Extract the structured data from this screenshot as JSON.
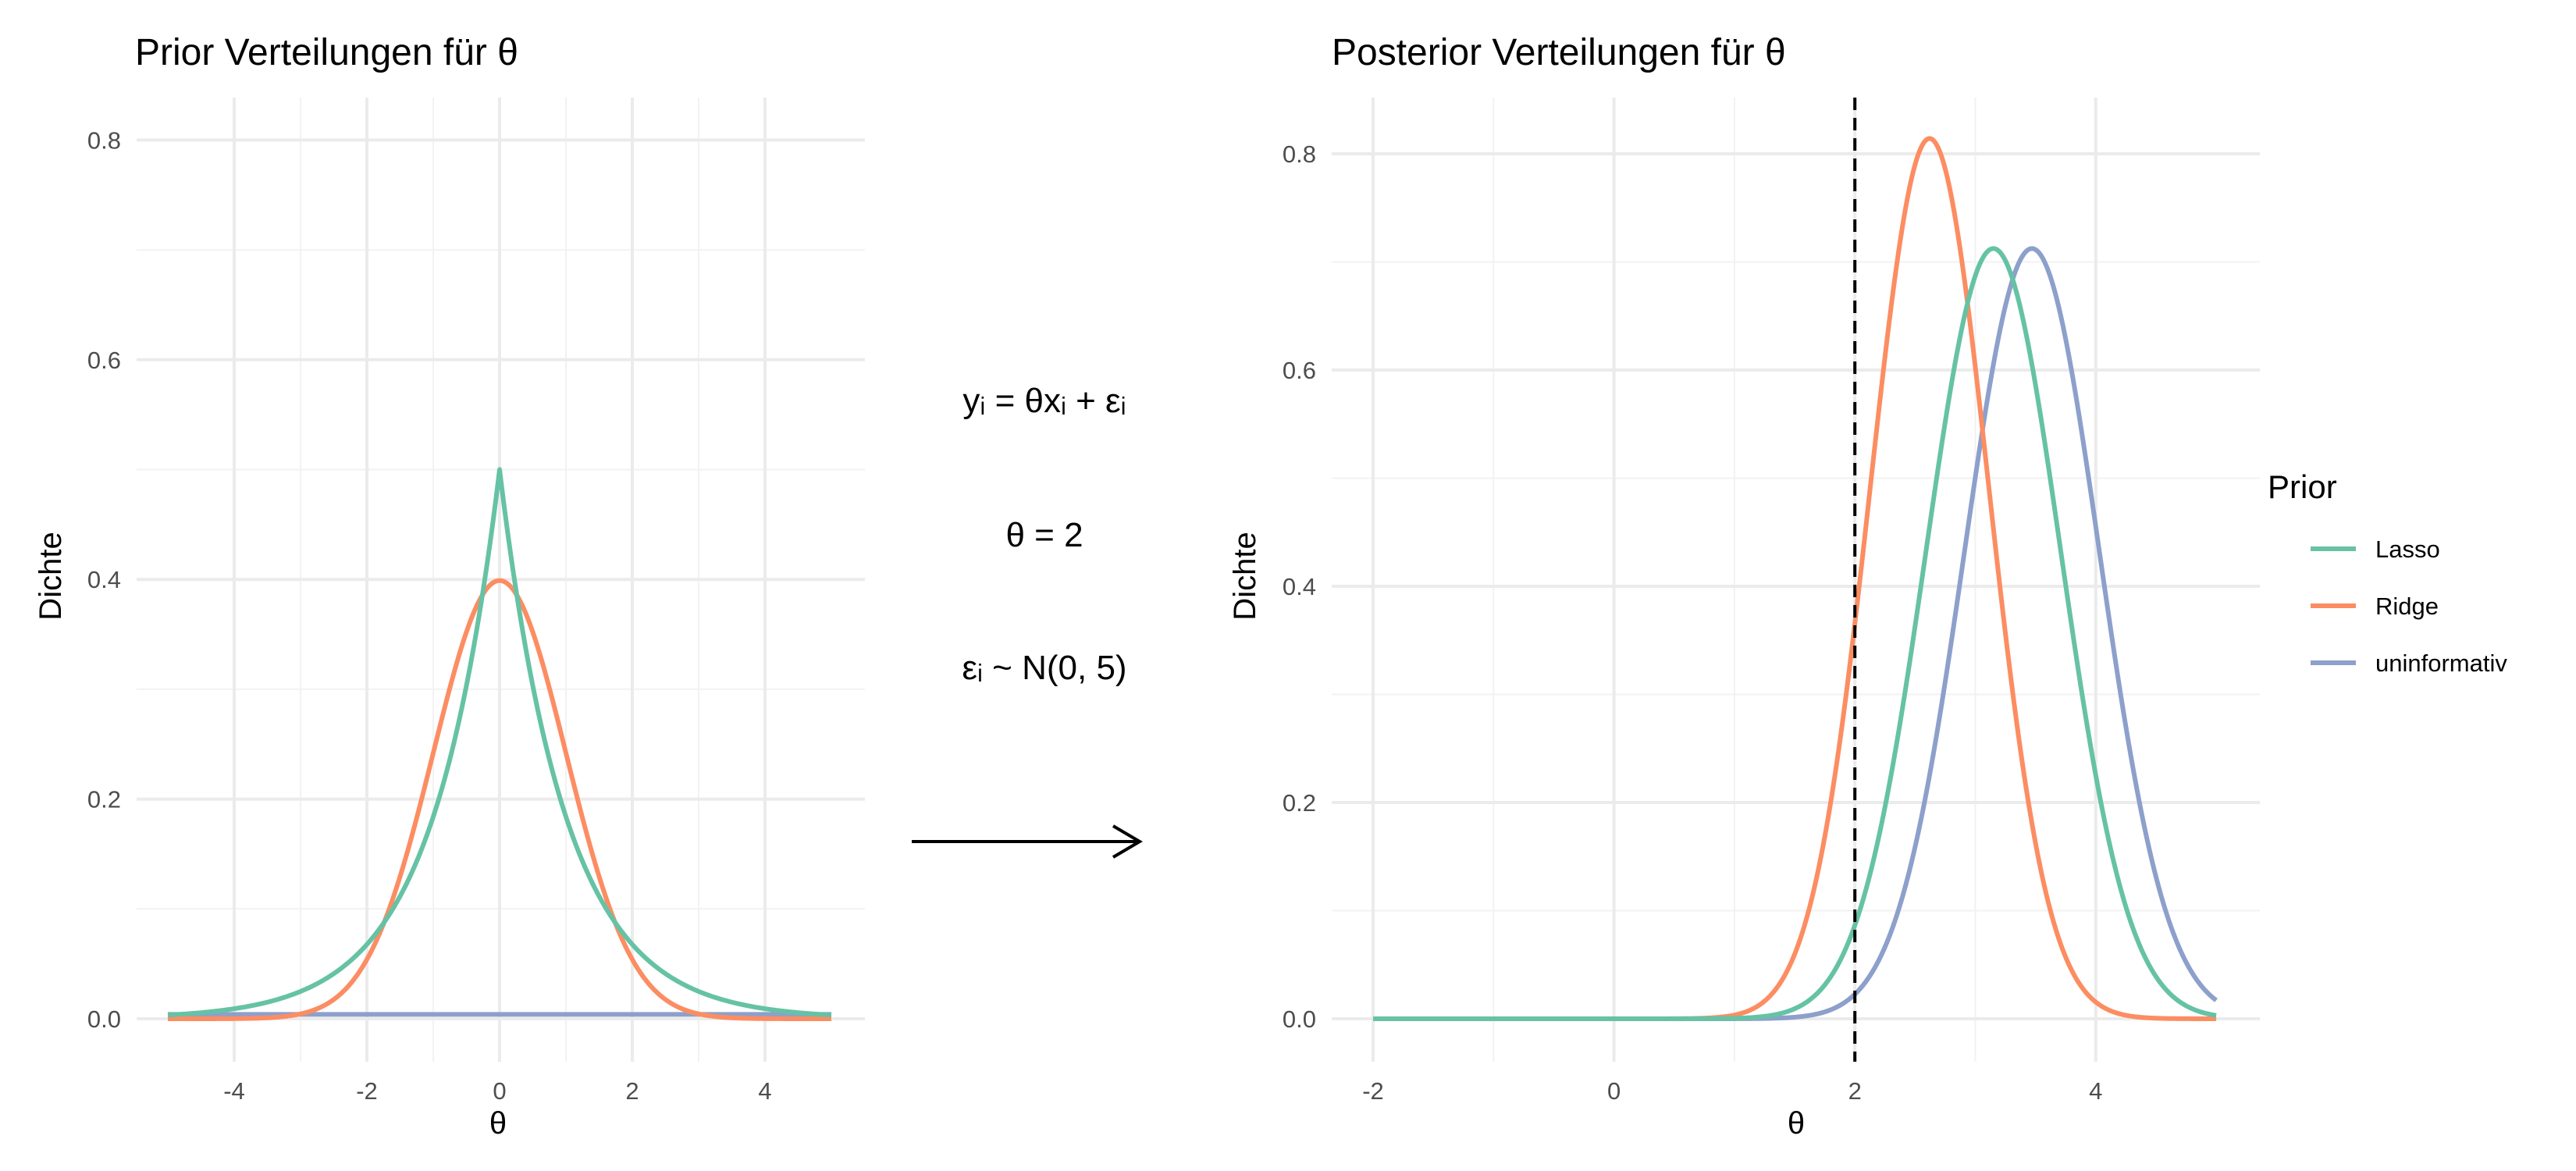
{
  "chart_data": [
    {
      "id": "prior",
      "type": "line",
      "title": "Prior Verteilungen für θ",
      "xlabel": "θ",
      "ylabel": "Dichte",
      "xlim": [
        -5,
        5
      ],
      "ylim": [
        0,
        0.8
      ],
      "x_ticks": [
        -4,
        -2,
        0,
        2,
        4
      ],
      "x_tick_labels": [
        "-4",
        "-2",
        "0",
        "2",
        "4"
      ],
      "y_ticks": [
        0,
        0.2,
        0.4,
        0.6,
        0.8
      ],
      "y_tick_labels": [
        "0.0",
        "0.2",
        "0.4",
        "0.6",
        "0.8"
      ],
      "grid": true,
      "series": [
        {
          "name": "Lasso",
          "distribution": "laplace",
          "location": 0,
          "scale": 1,
          "peak": 0.5
        },
        {
          "name": "Ridge",
          "distribution": "normal",
          "mean": 0,
          "sd": 1,
          "peak": 0.399
        },
        {
          "name": "uninformativ",
          "distribution": "uniform",
          "value": 0.004
        }
      ]
    },
    {
      "id": "posterior",
      "type": "line",
      "title": "Posterior Verteilungen für θ",
      "xlabel": "θ",
      "ylabel": "Dichte",
      "xlim": [
        -2,
        5
      ],
      "ylim": [
        0,
        0.85
      ],
      "x_ticks": [
        -2,
        0,
        2,
        4
      ],
      "x_tick_labels": [
        "-2",
        "0",
        "2",
        "4"
      ],
      "y_ticks": [
        0,
        0.2,
        0.4,
        0.6,
        0.8
      ],
      "y_tick_labels": [
        "0.0",
        "0.2",
        "0.4",
        "0.6",
        "0.8"
      ],
      "grid": true,
      "reference_line": {
        "x": 2,
        "style": "dashed"
      },
      "series": [
        {
          "name": "Lasso",
          "distribution": "normal",
          "mean": 3.15,
          "sd": 0.56,
          "peak": 0.712
        },
        {
          "name": "Ridge",
          "distribution": "normal",
          "mean": 2.62,
          "sd": 0.49,
          "peak": 0.815
        },
        {
          "name": "uninformativ",
          "distribution": "normal",
          "mean": 3.47,
          "sd": 0.56,
          "peak": 0.712
        }
      ]
    }
  ],
  "colors": {
    "Lasso": "#66c2a5",
    "Ridge": "#fc8d62",
    "uninformativ": "#8da0cb"
  },
  "legend": {
    "title": "Prior",
    "placement": "right",
    "items": [
      "Lasso",
      "Ridge",
      "uninformativ"
    ]
  },
  "annotation": {
    "formula1": "yᵢ = θxᵢ + εᵢ",
    "formula2": "θ = 2",
    "formula3": "εᵢ ~ N(0, 5)",
    "arrow": "right-arrow"
  }
}
